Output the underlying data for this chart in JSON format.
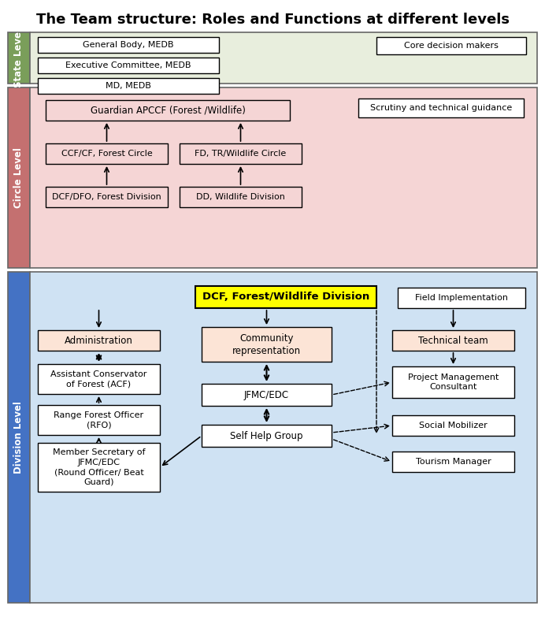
{
  "title": "The Team structure: Roles and Functions at different levels",
  "title_fontsize": 13,
  "bg_color": "#ffffff",
  "state_bg": "#e8eedd",
  "state_label": "State Level",
  "state_label_bg": "#7a9e5a",
  "state_boxes": [
    "General Body, MEDB",
    "Executive Committee, MEDB",
    "MD, MEDB"
  ],
  "state_note": "Core decision makers",
  "circle_bg": "#f5d5d5",
  "circle_label": "Circle Level",
  "circle_label_bg": "#c47070",
  "circle_top": "Guardian APCCF (Forest /Wildlife)",
  "circle_mid_left": "CCF/CF, Forest Circle",
  "circle_mid_right": "FD, TR/Wildlife Circle",
  "circle_bot_left": "DCF/DFO, Forest Division",
  "circle_bot_right": "DD, Wildlife Division",
  "circle_note": "Scrutiny and technical guidance",
  "div_bg": "#cfe2f3",
  "div_label": "Division Level",
  "div_label_bg": "#4472c4",
  "div_top": "DCF, Forest/Wildlife Division",
  "div_top_fill": "#ffff00",
  "div_note": "Field Implementation",
  "div_left_top": "Administration",
  "div_left_mid1": "Assistant Conservator\nof Forest (ACF)",
  "div_left_mid2": "Range Forest Officer\n(RFO)",
  "div_left_bot": "Member Secretary of\nJFMC/EDC\n(Round Officer/ Beat\nGuard)",
  "div_center_mid": "Community\nrepresentation",
  "div_center_bot1": "JFMC/EDC",
  "div_center_bot2": "Self Help Group",
  "div_right_top": "Technical team",
  "div_right_mid1": "Project Management\nConsultant",
  "div_right_mid2": "Social Mobilizer",
  "div_right_bot": "Tourism Manager",
  "box_facecolor": "#ffffff",
  "box_edge": "#000000",
  "text_color": "#000000",
  "peach_fill": "#fce4d6",
  "arrow_color": "#000000"
}
